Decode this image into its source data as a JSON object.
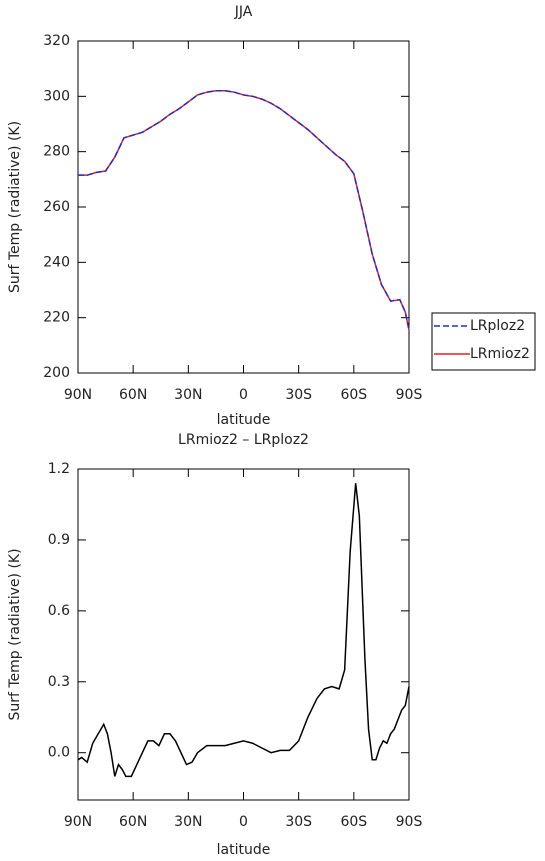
{
  "chart_data": [
    {
      "type": "line",
      "title": "JJA",
      "xlabel": "latitude",
      "ylabel": "Surf Temp (radiative) (K)",
      "xlim": [
        90,
        -90
      ],
      "xticks": [
        {
          "value": 90,
          "label": "90N"
        },
        {
          "value": 60,
          "label": "60N"
        },
        {
          "value": 30,
          "label": "30N"
        },
        0,
        {
          "value": -30,
          "label": "30S"
        },
        {
          "value": -60,
          "label": "60S"
        },
        {
          "value": -90,
          "label": "90S"
        }
      ],
      "ylim": [
        200,
        320
      ],
      "yticks": [
        200,
        220,
        240,
        260,
        280,
        300,
        320
      ],
      "legend": "right",
      "x": [
        90,
        85,
        80,
        75,
        70,
        65,
        60,
        55,
        50,
        45,
        40,
        35,
        30,
        25,
        20,
        15,
        10,
        5,
        0,
        -5,
        -10,
        -15,
        -20,
        -25,
        -30,
        -35,
        -40,
        -45,
        -50,
        -55,
        -60,
        -65,
        -70,
        -75,
        -80,
        -85,
        -88,
        -90
      ],
      "series": [
        {
          "name": "LRploz2",
          "color": "#1f2fbf",
          "dash": true,
          "values": [
            271.5,
            271.5,
            272.5,
            273,
            278,
            285,
            286,
            287,
            289,
            291,
            293.5,
            295.5,
            298,
            300.5,
            301.5,
            302,
            302,
            301.5,
            300.5,
            300,
            299,
            297.5,
            295.5,
            293,
            290.5,
            288,
            285,
            282,
            279,
            276.5,
            272,
            258,
            243,
            232,
            226,
            226.5,
            222,
            215.5
          ]
        },
        {
          "name": "LRmioz2",
          "color": "#e0201f",
          "dash": false,
          "values": [
            271.5,
            271.5,
            272.5,
            273,
            278,
            285,
            286,
            287,
            289,
            291,
            293.5,
            295.5,
            298,
            300.5,
            301.5,
            302,
            302,
            301.5,
            300.5,
            300,
            299,
            297.5,
            295.5,
            293,
            290.5,
            288,
            285,
            282,
            279,
            276.5,
            272,
            258,
            243,
            232,
            226,
            226.5,
            222,
            215.5
          ]
        }
      ]
    },
    {
      "type": "line",
      "title": "LRmioz2 – LRploz2",
      "xlabel": "latitude",
      "ylabel": "Surf Temp (radiative) (K)",
      "xlim": [
        90,
        -90
      ],
      "xticks": [
        {
          "value": 90,
          "label": "90N"
        },
        {
          "value": 60,
          "label": "60N"
        },
        {
          "value": 30,
          "label": "30N"
        },
        0,
        {
          "value": -30,
          "label": "30S"
        },
        {
          "value": -60,
          "label": "60S"
        },
        {
          "value": -90,
          "label": "90S"
        }
      ],
      "ylim": [
        -0.2,
        1.2
      ],
      "yticks": [
        {
          "value": 0,
          "label": "0.0"
        },
        0.3,
        0.6,
        0.9,
        1.2
      ],
      "x": [
        90,
        88,
        85,
        82,
        79,
        76,
        74,
        72,
        70,
        68,
        66,
        64,
        61,
        58,
        55,
        52,
        49,
        46,
        43,
        40,
        37,
        34,
        31,
        28,
        25,
        20,
        15,
        10,
        5,
        0,
        -5,
        -10,
        -15,
        -20,
        -25,
        -30,
        -35,
        -40,
        -44,
        -48,
        -52,
        -55,
        -58,
        -61,
        -63,
        -66,
        -68,
        -70,
        -72,
        -74,
        -76,
        -78,
        -80,
        -82,
        -84,
        -86,
        -88,
        -90
      ],
      "series": [
        {
          "color": "#000000",
          "dash": false,
          "values": [
            -0.03,
            -0.02,
            -0.04,
            0.04,
            0.08,
            0.12,
            0.08,
            0.0,
            -0.1,
            -0.05,
            -0.07,
            -0.1,
            -0.1,
            -0.05,
            0.0,
            0.05,
            0.05,
            0.03,
            0.08,
            0.08,
            0.05,
            0.0,
            -0.05,
            -0.04,
            0.0,
            0.03,
            0.03,
            0.03,
            0.04,
            0.05,
            0.04,
            0.02,
            0.0,
            0.01,
            0.01,
            0.05,
            0.15,
            0.23,
            0.27,
            0.28,
            0.27,
            0.35,
            0.85,
            1.14,
            1.0,
            0.4,
            0.1,
            -0.03,
            -0.03,
            0.02,
            0.05,
            0.04,
            0.08,
            0.1,
            0.14,
            0.18,
            0.2,
            0.28
          ]
        }
      ]
    }
  ]
}
